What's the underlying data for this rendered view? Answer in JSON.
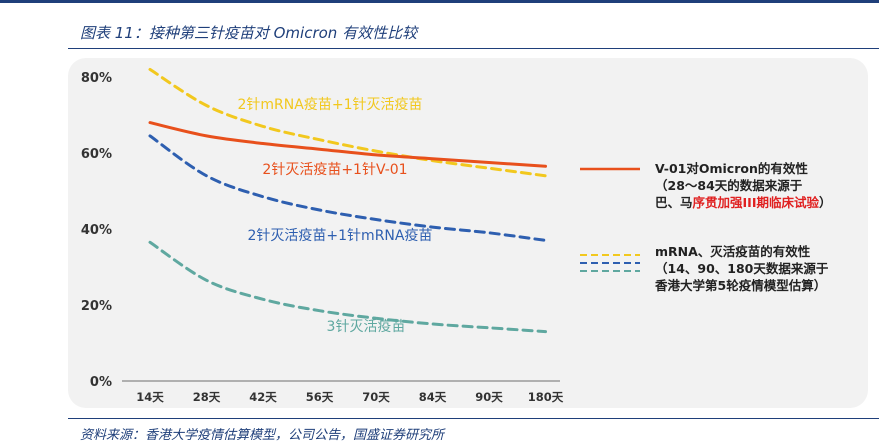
{
  "figure": {
    "title": "图表 11：接种第三针疫苗对 Omicron 有效性比较",
    "source": "资料来源：香港大学疫情估算模型，公司公告，国盛证券研究所"
  },
  "colors": {
    "accent": "#1f3f7a",
    "v01": "#e8501c",
    "mrna": "#f2c81e",
    "inactivated_mrna": "#2e5fb0",
    "inactivated3": "#5fa8a0",
    "highlight_red": "#e02020"
  },
  "chart_data": {
    "type": "line",
    "categories": [
      "14天",
      "28天",
      "42天",
      "56天",
      "70天",
      "84天",
      "90天",
      "180天"
    ],
    "yticks": [
      "0%",
      "20%",
      "40%",
      "60%",
      "80%"
    ],
    "ylim": [
      0,
      85
    ],
    "grid": false,
    "legend_position": "right",
    "series": [
      {
        "name": "2针灭活疫苗+1针V-01",
        "line_style": "solid",
        "values": [
          68,
          64.5,
          62.5,
          61,
          59.5,
          58.5,
          57.5,
          56.5
        ]
      },
      {
        "name": "2针mRNA疫苗+1针灭活疫苗",
        "line_style": "dashed",
        "values": [
          82,
          72.5,
          67,
          63.5,
          60.5,
          58,
          56,
          54
        ]
      },
      {
        "name": "2针灭活疫苗+1针mRNA疫苗",
        "line_style": "dashed",
        "values": [
          64.5,
          54,
          48.5,
          45,
          42.5,
          40.5,
          39,
          37
        ]
      },
      {
        "name": "3针灭活疫苗",
        "line_style": "dashed",
        "values": [
          36.5,
          26.5,
          21.5,
          18.5,
          16.5,
          15,
          14,
          13
        ]
      }
    ],
    "legend": [
      {
        "line_style": "solid",
        "lines": [
          "V-01对Omicron的有效性",
          "（28～84天的数据来源于",
          "巴、马",
          "序贯加强III期临床试验",
          "）"
        ]
      },
      {
        "line_style": "dashed",
        "lines": [
          "mRNA、灭活疫苗的有效性",
          "（14、90、180天数据来源于",
          "香港大学第5轮疫情模型估算）"
        ]
      }
    ]
  }
}
